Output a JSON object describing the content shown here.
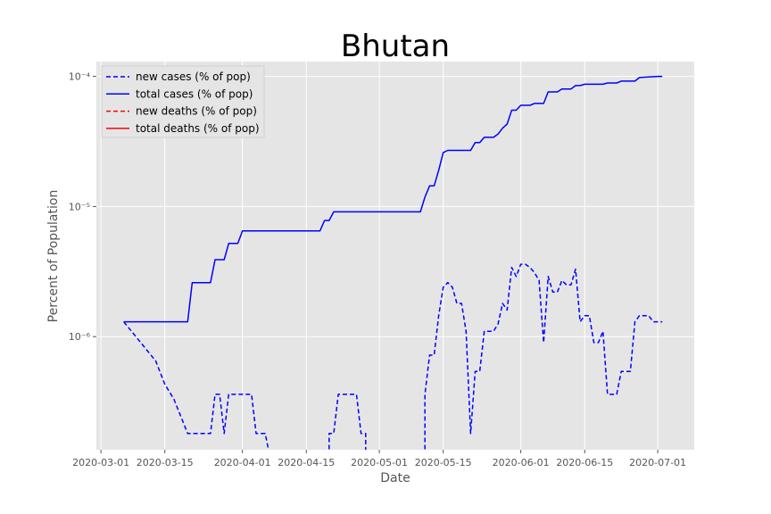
{
  "chart_data": {
    "type": "line",
    "title": "Bhutan",
    "xlabel": "Date",
    "ylabel": "Percent of Population",
    "yscale": "log",
    "ylim": [
      1.35e-07,
      0.00013
    ],
    "xlim": [
      "2020-02-29",
      "2020-07-09"
    ],
    "x_ticks": [
      "2020-03-01",
      "2020-03-15",
      "2020-04-01",
      "2020-04-15",
      "2020-05-01",
      "2020-05-15",
      "2020-06-01",
      "2020-06-15",
      "2020-07-01"
    ],
    "y_ticks": [
      {
        "value": 1e-06,
        "label": "10⁻⁶"
      },
      {
        "value": 1e-05,
        "label": "10⁻⁵"
      },
      {
        "value": 0.0001,
        "label": "10⁻⁴"
      }
    ],
    "grid": true,
    "legend_position": "top-left",
    "legend": [
      {
        "label": "new cases (% of pop)",
        "color": "#0000ff",
        "style": "dashed"
      },
      {
        "label": "total cases (% of pop)",
        "color": "#0000ff",
        "style": "solid"
      },
      {
        "label": "new deaths (% of pop)",
        "color": "#ff0000",
        "style": "dashed"
      },
      {
        "label": "total deaths (% of pop)",
        "color": "#ff0000",
        "style": "solid"
      }
    ],
    "series": [
      {
        "name": "new cases (% of pop)",
        "color": "#0000ff",
        "style": "dashed",
        "points": [
          [
            "2020-03-06",
            1.3e-06
          ],
          [
            "2020-03-13",
            6.5e-07
          ],
          [
            "2020-03-15",
            4.3e-07
          ],
          [
            "2020-03-17",
            3.3e-07
          ],
          [
            "2020-03-20",
            1.8e-07
          ],
          [
            "2020-03-24",
            1.8e-07
          ],
          [
            "2020-03-25",
            1.8e-07
          ],
          [
            "2020-03-26",
            3.6e-07
          ],
          [
            "2020-03-27",
            3.6e-07
          ],
          [
            "2020-03-28",
            1.8e-07
          ],
          [
            "2020-03-29",
            3.6e-07
          ],
          [
            "2020-04-02",
            3.6e-07
          ],
          [
            "2020-04-03",
            3.6e-07
          ],
          [
            "2020-04-04",
            1.8e-07
          ],
          [
            "2020-04-06",
            1.8e-07
          ],
          [
            "2020-04-07",
            1.2e-07
          ],
          null,
          [
            "2020-04-20",
            1.2e-07
          ],
          [
            "2020-04-20",
            1.8e-07
          ],
          [
            "2020-04-21",
            1.8e-07
          ],
          [
            "2020-04-22",
            3.6e-07
          ],
          [
            "2020-04-26",
            3.6e-07
          ],
          [
            "2020-04-27",
            1.8e-07
          ],
          [
            "2020-04-28",
            1.8e-07
          ],
          [
            "2020-04-28",
            1.2e-07
          ],
          null,
          [
            "2020-05-11",
            1.2e-07
          ],
          [
            "2020-05-11",
            3.6e-07
          ],
          [
            "2020-05-12",
            7.2e-07
          ],
          [
            "2020-05-13",
            7.2e-07
          ],
          [
            "2020-05-14",
            1.45e-06
          ],
          [
            "2020-05-15",
            2.4e-06
          ],
          [
            "2020-05-16",
            2.6e-06
          ],
          [
            "2020-05-17",
            2.4e-06
          ],
          [
            "2020-05-18",
            1.8e-06
          ],
          [
            "2020-05-19",
            1.8e-06
          ],
          [
            "2020-05-20",
            1.1e-06
          ],
          [
            "2020-05-21",
            1.8e-07
          ],
          [
            "2020-05-22",
            5.4e-07
          ],
          [
            "2020-05-23",
            5.4e-07
          ],
          [
            "2020-05-24",
            1.1e-06
          ],
          [
            "2020-05-26",
            1.1e-06
          ],
          [
            "2020-05-27",
            1.25e-06
          ],
          [
            "2020-05-28",
            1.8e-06
          ],
          [
            "2020-05-29",
            1.6e-06
          ],
          [
            "2020-05-30",
            3.4e-06
          ],
          [
            "2020-05-31",
            2.9e-06
          ],
          [
            "2020-06-01",
            3.6e-06
          ],
          [
            "2020-06-02",
            3.6e-06
          ],
          [
            "2020-06-03",
            3.4e-06
          ],
          [
            "2020-06-04",
            3.1e-06
          ],
          [
            "2020-06-05",
            2.7e-06
          ],
          [
            "2020-06-06",
            9e-07
          ],
          [
            "2020-06-07",
            2.9e-06
          ],
          [
            "2020-06-08",
            2.2e-06
          ],
          [
            "2020-06-09",
            2.2e-06
          ],
          [
            "2020-06-10",
            2.7e-06
          ],
          [
            "2020-06-11",
            2.5e-06
          ],
          [
            "2020-06-12",
            2.5e-06
          ],
          [
            "2020-06-13",
            3.3e-06
          ],
          [
            "2020-06-14",
            1.3e-06
          ],
          [
            "2020-06-15",
            1.45e-06
          ],
          [
            "2020-06-16",
            1.45e-06
          ],
          [
            "2020-06-17",
            9e-07
          ],
          [
            "2020-06-18",
            9e-07
          ],
          [
            "2020-06-19",
            1.1e-06
          ],
          [
            "2020-06-20",
            3.6e-07
          ],
          [
            "2020-06-22",
            3.6e-07
          ],
          [
            "2020-06-23",
            5.4e-07
          ],
          [
            "2020-06-25",
            5.4e-07
          ],
          [
            "2020-06-26",
            1.3e-06
          ],
          [
            "2020-06-27",
            1.45e-06
          ],
          [
            "2020-06-29",
            1.45e-06
          ],
          [
            "2020-06-30",
            1.3e-06
          ],
          [
            "2020-07-02",
            1.3e-06
          ]
        ]
      },
      {
        "name": "total cases (% of pop)",
        "color": "#0000ff",
        "style": "solid",
        "points": [
          [
            "2020-03-06",
            1.3e-06
          ],
          [
            "2020-03-20",
            1.3e-06
          ],
          [
            "2020-03-21",
            2.6e-06
          ],
          [
            "2020-03-24",
            2.6e-06
          ],
          [
            "2020-03-25",
            2.6e-06
          ],
          [
            "2020-03-26",
            3.9e-06
          ],
          [
            "2020-03-28",
            3.9e-06
          ],
          [
            "2020-03-29",
            5.2e-06
          ],
          [
            "2020-03-31",
            5.2e-06
          ],
          [
            "2020-04-01",
            6.5e-06
          ],
          [
            "2020-04-18",
            6.5e-06
          ],
          [
            "2020-04-19",
            7.8e-06
          ],
          [
            "2020-04-20",
            7.8e-06
          ],
          [
            "2020-04-21",
            9.1e-06
          ],
          [
            "2020-05-10",
            9.1e-06
          ],
          [
            "2020-05-11",
            1.18e-05
          ],
          [
            "2020-05-12",
            1.44e-05
          ],
          [
            "2020-05-13",
            1.44e-05
          ],
          [
            "2020-05-14",
            1.9e-05
          ],
          [
            "2020-05-15",
            2.6e-05
          ],
          [
            "2020-05-16",
            2.7e-05
          ],
          [
            "2020-05-21",
            2.7e-05
          ],
          [
            "2020-05-22",
            3.1e-05
          ],
          [
            "2020-05-23",
            3.1e-05
          ],
          [
            "2020-05-24",
            3.4e-05
          ],
          [
            "2020-05-26",
            3.4e-05
          ],
          [
            "2020-05-27",
            3.6e-05
          ],
          [
            "2020-05-28",
            4e-05
          ],
          [
            "2020-05-29",
            4.3e-05
          ],
          [
            "2020-05-30",
            5.5e-05
          ],
          [
            "2020-05-31",
            5.5e-05
          ],
          [
            "2020-06-01",
            6e-05
          ],
          [
            "2020-06-03",
            6e-05
          ],
          [
            "2020-06-04",
            6.2e-05
          ],
          [
            "2020-06-06",
            6.2e-05
          ],
          [
            "2020-06-07",
            7.6e-05
          ],
          [
            "2020-06-09",
            7.6e-05
          ],
          [
            "2020-06-10",
            8e-05
          ],
          [
            "2020-06-12",
            8e-05
          ],
          [
            "2020-06-13",
            8.5e-05
          ],
          [
            "2020-06-14",
            8.5e-05
          ],
          [
            "2020-06-15",
            8.7e-05
          ],
          [
            "2020-06-19",
            8.7e-05
          ],
          [
            "2020-06-20",
            8.9e-05
          ],
          [
            "2020-06-22",
            8.9e-05
          ],
          [
            "2020-06-23",
            9.2e-05
          ],
          [
            "2020-06-26",
            9.2e-05
          ],
          [
            "2020-06-27",
            9.8e-05
          ],
          [
            "2020-06-29",
            9.9e-05
          ],
          [
            "2020-07-01",
            0.0001
          ],
          [
            "2020-07-02",
            0.0001
          ]
        ]
      }
    ]
  }
}
